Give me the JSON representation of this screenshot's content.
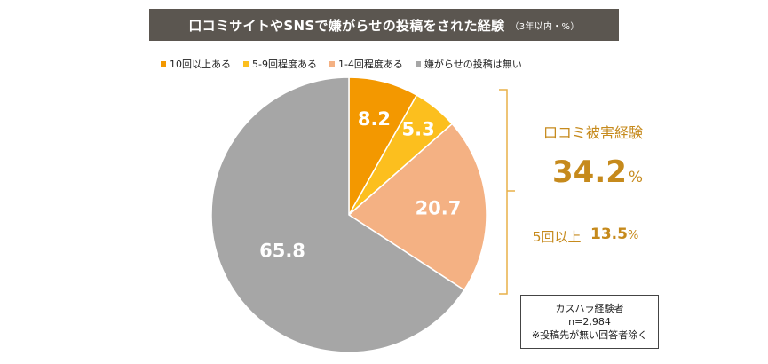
{
  "title": "口コミサイトやSNSで嫌がらせの投稿をされた経験",
  "subtitle": "（3年以内・%）",
  "colors": {
    "title_bg": "#5b5650",
    "accent": "#c68a1c"
  },
  "chart_data": {
    "type": "pie",
    "start": "12-o'clock",
    "direction": "clockwise",
    "slices": [
      {
        "label": "10回以上ある",
        "value": 8.2,
        "display": "8.2",
        "color": "#f39800"
      },
      {
        "label": "5-9回程度ある",
        "value": 5.3,
        "display": "5.3",
        "color": "#fcbf1e"
      },
      {
        "label": "1-4回程度ある",
        "value": 20.7,
        "display": "20.7",
        "color": "#f4b183"
      },
      {
        "label": "嫌がらせの投稿は無い",
        "value": 65.8,
        "display": "65.8",
        "color": "#a6a6a6"
      }
    ]
  },
  "callout": {
    "label": "口コミ被害経験",
    "value": "34.2",
    "unit": "%",
    "five_label": "5回以上",
    "five_value": "13.5",
    "five_unit": "%"
  },
  "note": {
    "line1": "カスハラ経験者",
    "line2": "n=2,984",
    "line3": "※投稿先が無い回答者除く"
  }
}
